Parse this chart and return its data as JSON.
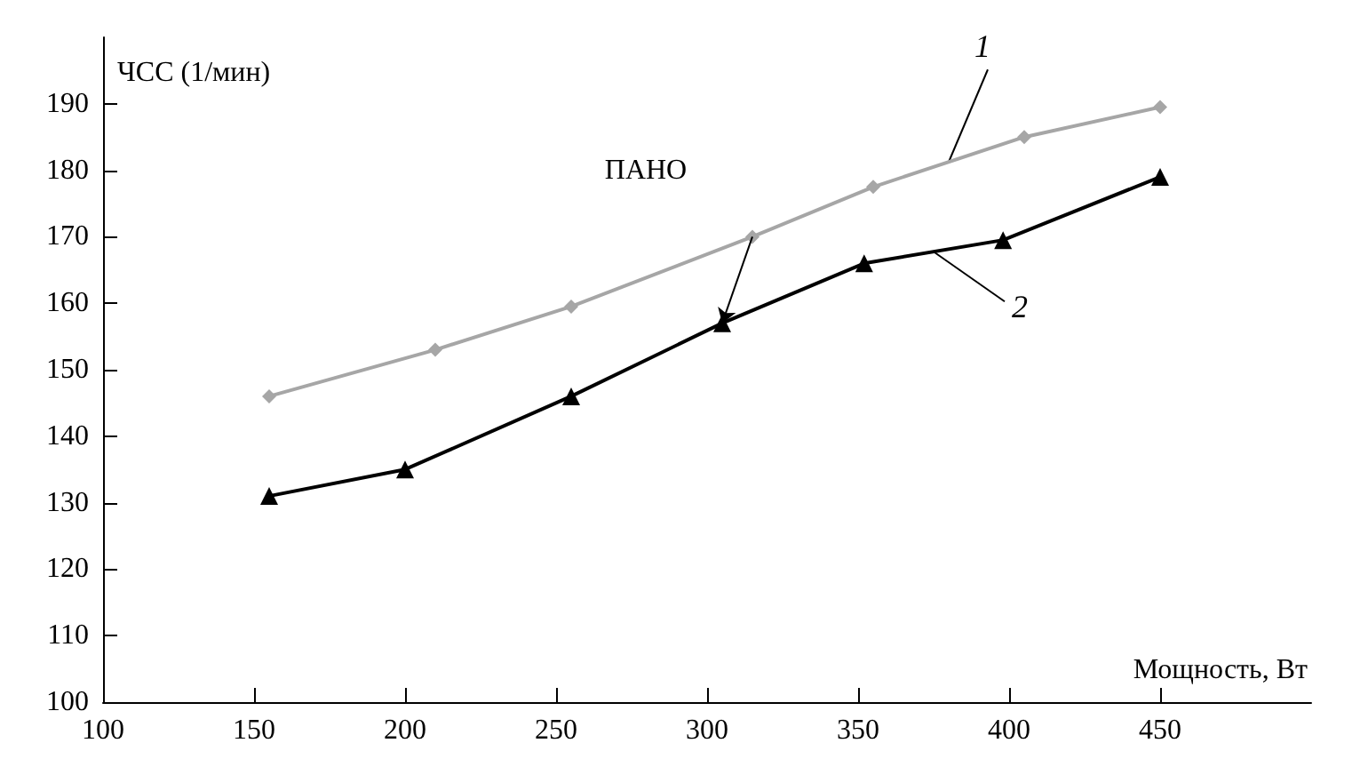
{
  "chart_data": {
    "type": "line",
    "xlabel": "Мощность, Вт",
    "ylabel": "ЧСС (1/мин)",
    "xlim": [
      100,
      500
    ],
    "xticks": [
      100,
      150,
      200,
      250,
      300,
      350,
      400,
      450
    ],
    "ylim": [
      100,
      200
    ],
    "yticks": [
      100,
      110,
      120,
      130,
      140,
      150,
      160,
      170,
      180,
      190
    ],
    "grid": false,
    "legend": false,
    "series": [
      {
        "name": "1",
        "color": "#a6a6a6",
        "marker": "diamond",
        "x": [
          155,
          210,
          255,
          315,
          355,
          405,
          450
        ],
        "values": [
          146,
          153,
          159.5,
          170,
          177.5,
          185,
          189.5
        ]
      },
      {
        "name": "2",
        "color": "#000000",
        "marker": "triangle",
        "x": [
          155,
          200,
          255,
          305,
          352,
          398,
          450
        ],
        "values": [
          131,
          135,
          146,
          157,
          166,
          169.5,
          179
        ]
      }
    ],
    "annotations": [
      {
        "text": "ПАНО",
        "x": 315,
        "y": 170
      }
    ]
  }
}
